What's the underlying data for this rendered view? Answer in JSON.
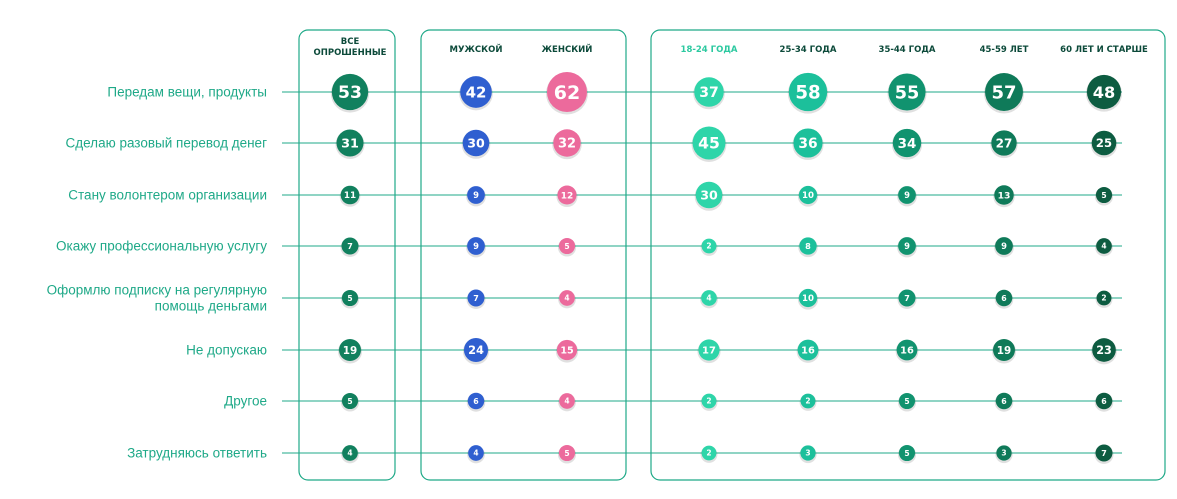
{
  "chart_data": {
    "type": "bubble-matrix",
    "columns": [
      {
        "label": "ВСЕ ОПРОШЕННЫЕ",
        "label_lines": [
          "ВСЕ",
          "ОПРОШЕННЫЕ"
        ],
        "group": "all",
        "color": "#11805E",
        "header_color": "#0C4A3A"
      },
      {
        "label": "МУЖСКОЙ",
        "label_lines": [
          "МУЖСКОЙ"
        ],
        "group": "gender",
        "color": "#2F5FD0",
        "header_color": "#0C4A3A"
      },
      {
        "label": "ЖЕНСКИЙ",
        "label_lines": [
          "ЖЕНСКИЙ"
        ],
        "group": "gender",
        "color": "#EC6A9C",
        "header_color": "#0C4A3A"
      },
      {
        "label": "18-24 ГОДА",
        "label_lines": [
          "18-24 ГОДА"
        ],
        "group": "age",
        "color": "#2ED5A9",
        "header_color": "#2CC9A0"
      },
      {
        "label": "25-34 ГОДА",
        "label_lines": [
          "25-34 ГОДА"
        ],
        "group": "age",
        "color": "#1CC09B",
        "header_color": "#0C4A3A"
      },
      {
        "label": "35-44 ГОДА",
        "label_lines": [
          "35-44 ГОДА"
        ],
        "group": "age",
        "color": "#11936F",
        "header_color": "#0C4A3A"
      },
      {
        "label": "45-59 ЛЕТ",
        "label_lines": [
          "45-59 ЛЕТ"
        ],
        "group": "age",
        "color": "#0F7A59",
        "header_color": "#0C4A3A"
      },
      {
        "label": "60 ЛЕТ И СТАРШЕ",
        "label_lines": [
          "60 ЛЕТ И СТАРШЕ"
        ],
        "group": "age",
        "color": "#0D5C41",
        "header_color": "#0C4A3A"
      }
    ],
    "rows": [
      {
        "label": "Передам вещи, продукты",
        "label_lines": [
          "Передам вещи, продукты"
        ],
        "values": [
          53,
          42,
          62,
          37,
          58,
          55,
          57,
          48
        ]
      },
      {
        "label": "Сделаю разовый перевод денег",
        "label_lines": [
          "Сделаю разовый перевод денег"
        ],
        "values": [
          31,
          30,
          32,
          45,
          36,
          34,
          27,
          25
        ]
      },
      {
        "label": "Стану волонтером организации",
        "label_lines": [
          "Стану волонтером организации"
        ],
        "values": [
          11,
          9,
          12,
          30,
          10,
          9,
          13,
          5
        ]
      },
      {
        "label": "Окажу профессиональную услугу",
        "label_lines": [
          "Окажу профессиональную услугу"
        ],
        "values": [
          7,
          9,
          5,
          2,
          8,
          9,
          9,
          4
        ]
      },
      {
        "label": "Оформлю подписку на регулярную помощь деньгами",
        "label_lines": [
          "Оформлю подписку на регулярную",
          "помощь деньгами"
        ],
        "values": [
          5,
          7,
          4,
          4,
          10,
          7,
          6,
          2
        ]
      },
      {
        "label": "Не допускаю",
        "label_lines": [
          "Не допускаю"
        ],
        "values": [
          19,
          24,
          15,
          17,
          16,
          16,
          19,
          23
        ]
      },
      {
        "label": "Другое",
        "label_lines": [
          "Другое"
        ],
        "values": [
          5,
          6,
          4,
          2,
          2,
          5,
          6,
          6
        ]
      },
      {
        "label": "Затрудняюсь ответить",
        "label_lines": [
          "Затрудняюсь ответить"
        ],
        "values": [
          4,
          4,
          5,
          2,
          3,
          5,
          3,
          7
        ]
      }
    ],
    "colors": {
      "row_label": "#1FA988",
      "line": "#1FA988",
      "group_border": "#1FA988"
    }
  }
}
